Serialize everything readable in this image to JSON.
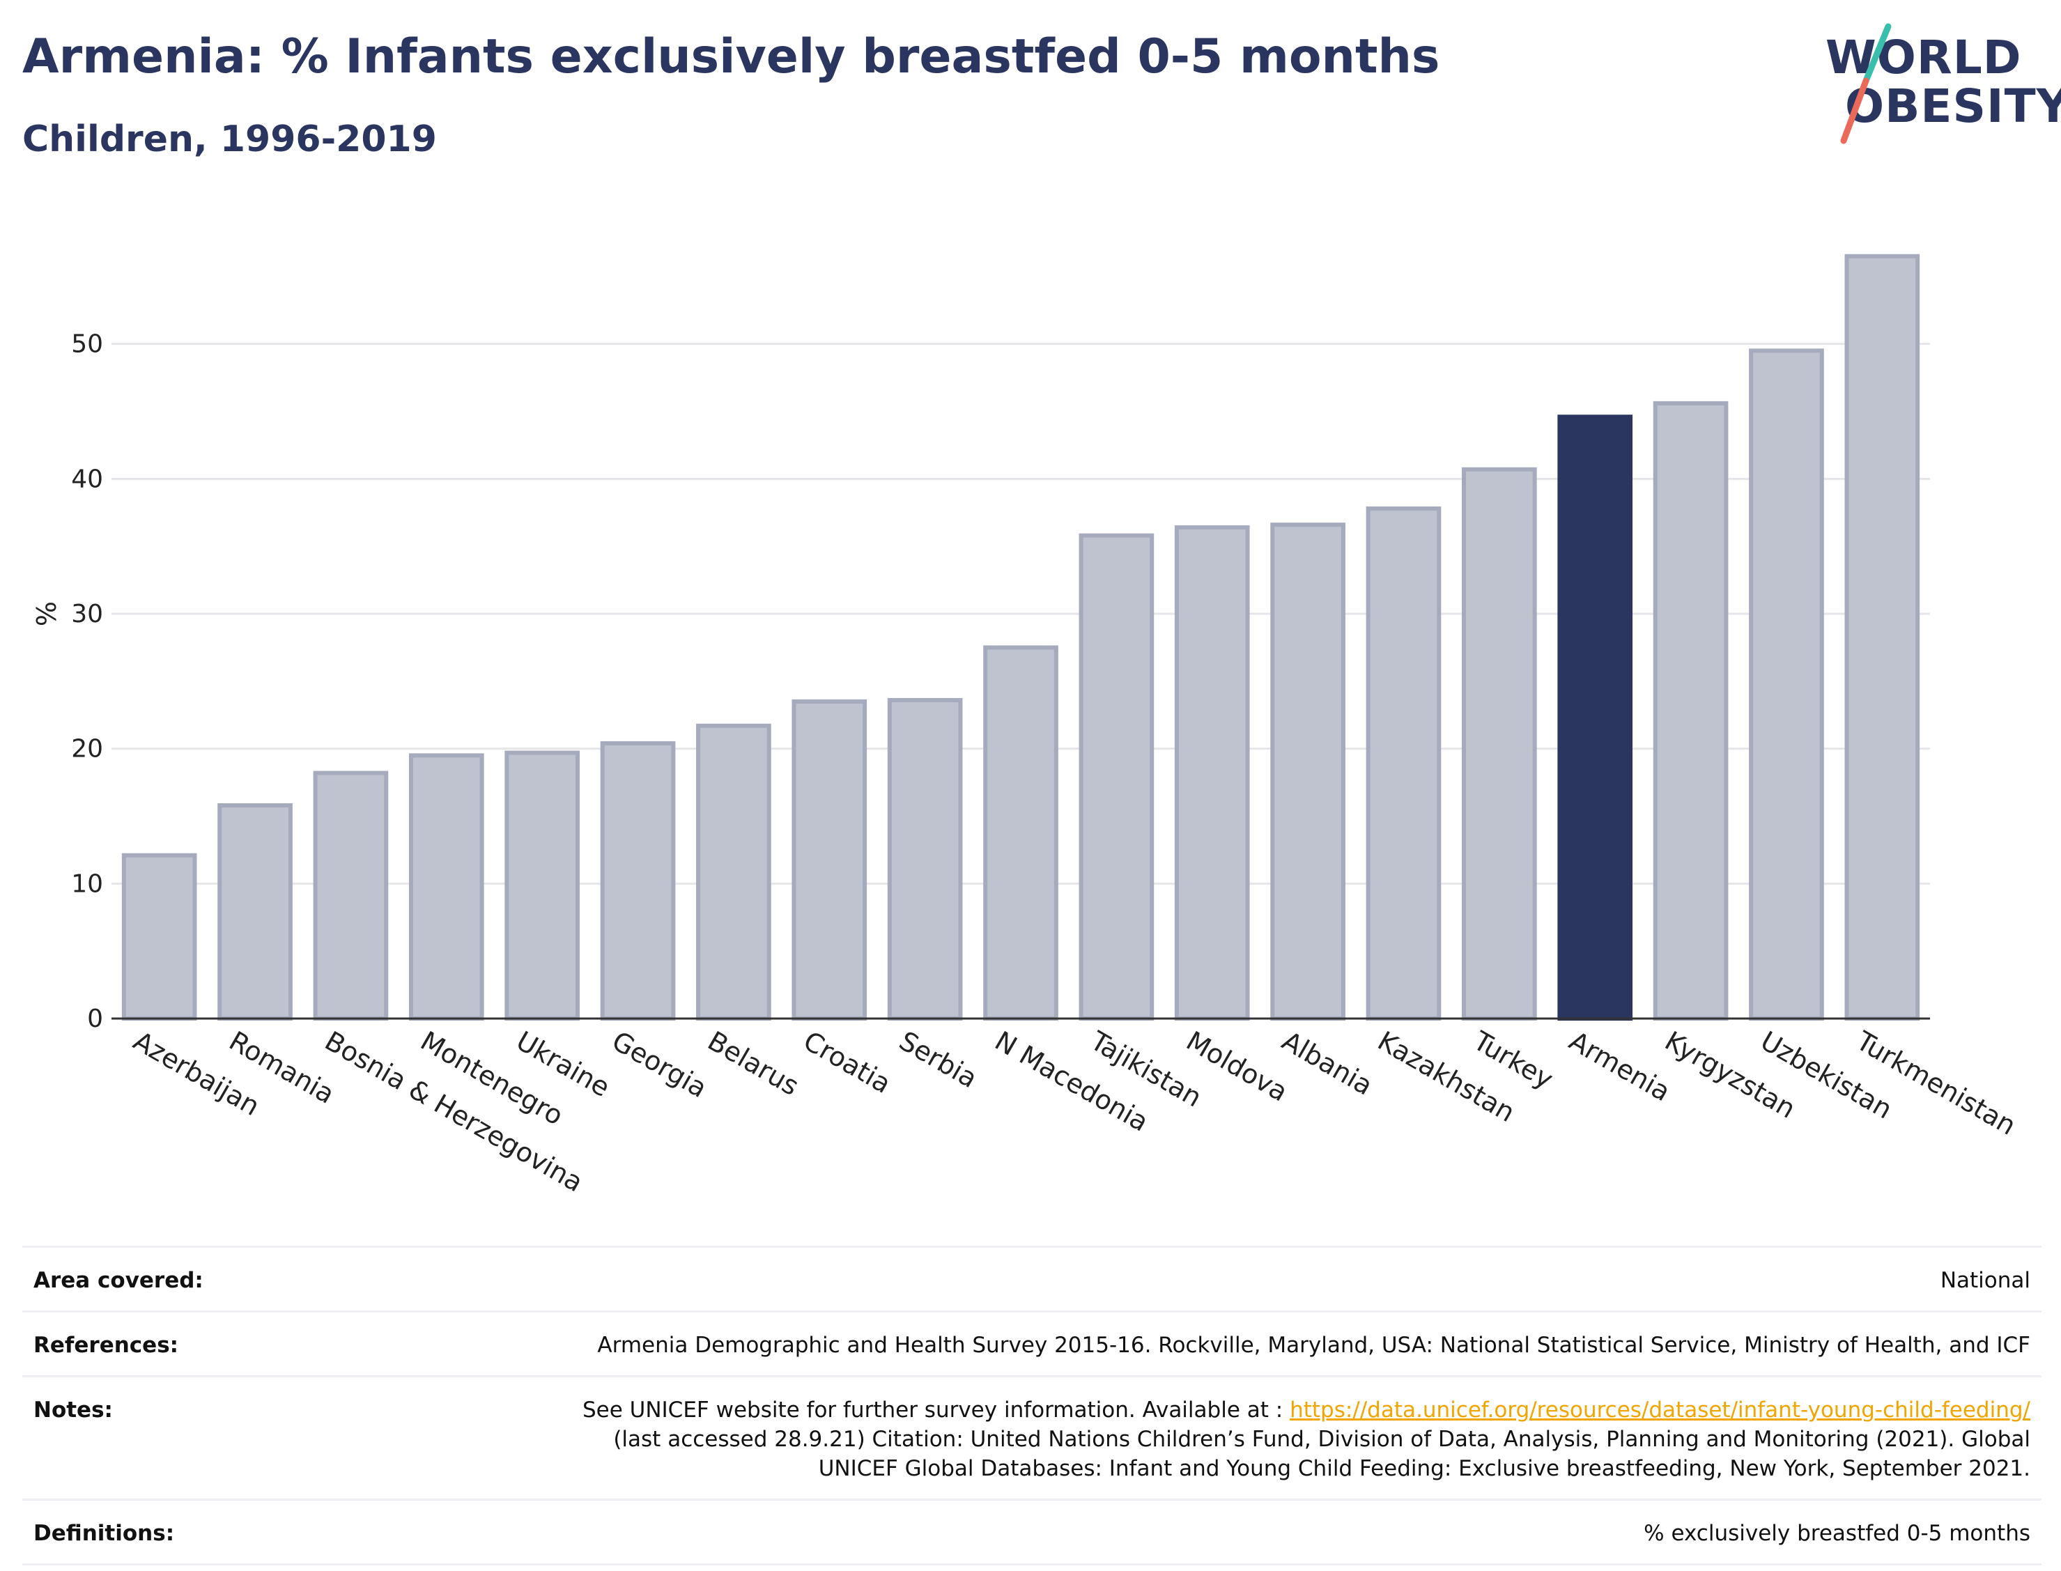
{
  "header": {
    "title": "Armenia: % Infants exclusively breastfed 0-5 months",
    "subtitle": "Children, 1996-2019"
  },
  "logo": {
    "line1": "WORLD",
    "line2": "OBESITY",
    "colors": {
      "text": "#2a3560",
      "slash_top": "#3bbfad",
      "slash_bottom": "#ea6a5a"
    }
  },
  "chart_data": {
    "type": "bar",
    "categories": [
      "Azerbaijan",
      "Romania",
      "Bosnia & Herzegovina",
      "Montenegro",
      "Ukraine",
      "Georgia",
      "Belarus",
      "Croatia",
      "Serbia",
      "N Macedonia",
      "Tajikistan",
      "Moldova",
      "Albania",
      "Kazakhstan",
      "Turkey",
      "Armenia",
      "Kyrgyzstan",
      "Uzbekistan",
      "Turkmenistan"
    ],
    "values": [
      12.1,
      15.8,
      18.2,
      19.5,
      19.7,
      20.4,
      21.7,
      23.5,
      23.6,
      27.5,
      35.8,
      36.4,
      36.6,
      37.8,
      40.7,
      44.6,
      45.6,
      49.5,
      56.5
    ],
    "highlight": "Armenia",
    "ylabel": "%",
    "xlabel": "",
    "ylim": [
      0,
      60
    ],
    "yticks": [
      0,
      10,
      20,
      30,
      40,
      50
    ],
    "grid": true,
    "colors": {
      "bar": "#bfc2cf",
      "bar_edge": "#a6aabd",
      "highlight": "#2a3560",
      "grid": "#e6e6ea",
      "axis": "#333333"
    }
  },
  "info": {
    "area": {
      "label": "Area covered:",
      "value": "National"
    },
    "references": {
      "label": "References:",
      "value": "Armenia Demographic and Health Survey 2015-16. Rockville, Maryland, USA: National Statistical Service, Ministry of Health, and ICF"
    },
    "notes": {
      "label": "Notes:",
      "prefix": "See UNICEF website for further survey information. Available at : ",
      "link": "https://data.unicef.org/resources/dataset/infant-young-child-feeding/",
      "line2": "(last accessed 28.9.21) Citation: United Nations Children’s Fund, Division of Data, Analysis, Planning and Monitoring (2021). Global",
      "line3": "UNICEF Global Databases: Infant and Young Child Feeding: Exclusive breastfeeding, New York, September 2021."
    },
    "definitions": {
      "label": "Definitions:",
      "value": "% exclusively breastfed 0-5 months"
    }
  }
}
